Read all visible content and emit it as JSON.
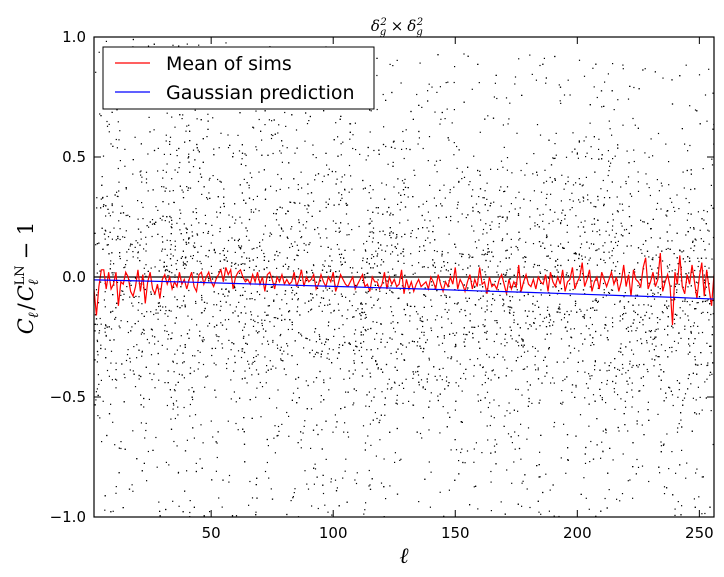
{
  "chart_data": {
    "type": "line",
    "title": "δ_g² × δ_g²",
    "title_parts": {
      "a": "δ",
      "a_sub": "g",
      "a_sup": "2",
      "times": "×",
      "b": "δ",
      "b_sub": "g",
      "b_sup": "2"
    },
    "xlabel": "ℓ",
    "ylabel": "C_ℓ / C_ℓ^LN − 1",
    "ylabel_parts": {
      "c1": "C",
      "c1_sub": "ℓ",
      "slash": "/",
      "c2": "C",
      "c2_sub": "ℓ",
      "c2_sup": "LN",
      "minus_one": "− 1"
    },
    "xlim": [
      2,
      256
    ],
    "ylim": [
      -1.0,
      1.0
    ],
    "xticks": [
      50,
      100,
      150,
      200,
      250
    ],
    "yticks": [
      -1.0,
      -0.5,
      0.0,
      0.5,
      1.0
    ],
    "xtick_labels": [
      "50",
      "100",
      "150",
      "200",
      "250"
    ],
    "ytick_labels": [
      "−1.0",
      "−0.5",
      "0.0",
      "0.5",
      "1.0"
    ],
    "reference_line_y": 0.0,
    "legend_position": "top-left",
    "grid": false,
    "series": [
      {
        "name": "Mean of sims",
        "color": "#ff0000",
        "x_start": 2,
        "x_step": 1,
        "values": [
          -0.05,
          -0.16,
          -0.04,
          0.03,
          0.03,
          -0.05,
          0.02,
          -0.05,
          -0.03,
          0.02,
          -0.12,
          -0.02,
          -0.03,
          0.02,
          0.0,
          -0.06,
          -0.08,
          -0.04,
          0.03,
          -0.06,
          0.01,
          -0.11,
          -0.02,
          0.02,
          -0.05,
          -0.07,
          -0.03,
          -0.09,
          -0.01,
          0.01,
          -0.03,
          0.0,
          -0.05,
          -0.02,
          -0.04,
          0.02,
          -0.03,
          -0.01,
          -0.05,
          -0.01,
          0.02,
          -0.04,
          -0.06,
          0.01,
          0.02,
          -0.03,
          0.0,
          0.02,
          -0.02,
          -0.04,
          -0.01,
          0.01,
          0.03,
          -0.02,
          0.04,
          0.01,
          0.03,
          -0.05,
          0.0,
          0.02,
          0.03,
          0.0,
          -0.02,
          -0.01,
          -0.03,
          0.01,
          -0.02,
          0.02,
          -0.03,
          0.0,
          -0.06,
          0.01,
          0.02,
          -0.01,
          -0.05,
          0.0,
          -0.02,
          0.01,
          -0.03,
          -0.01,
          -0.03,
          -0.02,
          0.02,
          -0.04,
          -0.01,
          0.03,
          -0.04,
          0.0,
          -0.02,
          -0.01,
          0.01,
          -0.05,
          -0.03,
          0.01,
          -0.02,
          -0.04,
          0.0,
          -0.02,
          0.02,
          -0.06,
          -0.03,
          0.01,
          -0.01,
          -0.03,
          -0.04,
          -0.02,
          0.0,
          -0.05,
          -0.03,
          -0.01,
          0.01,
          -0.04,
          -0.03,
          -0.06,
          0.0,
          -0.02,
          -0.02,
          -0.05,
          -0.03,
          0.02,
          -0.05,
          0.0,
          -0.03,
          -0.01,
          -0.04,
          -0.03,
          0.03,
          -0.07,
          -0.01,
          -0.05,
          -0.02,
          -0.06,
          -0.03,
          -0.01,
          -0.04,
          -0.03,
          -0.02,
          -0.05,
          0.0,
          -0.02,
          -0.05,
          0.01,
          -0.03,
          -0.06,
          -0.02,
          -0.04,
          0.0,
          -0.03,
          0.04,
          -0.05,
          -0.01,
          -0.03,
          -0.06,
          -0.02,
          0.01,
          -0.05,
          -0.01,
          -0.04,
          0.04,
          -0.03,
          -0.02,
          -0.07,
          0.0,
          -0.04,
          -0.03,
          -0.05,
          -0.01,
          0.01,
          -0.03,
          -0.07,
          -0.01,
          -0.05,
          -0.02,
          -0.04,
          0.05,
          -0.06,
          -0.02,
          0.01,
          -0.03,
          -0.04,
          -0.01,
          -0.05,
          0.0,
          -0.02,
          -0.03,
          0.01,
          -0.06,
          0.02,
          -0.02,
          -0.04,
          0.0,
          -0.03,
          0.03,
          -0.06,
          -0.02,
          -0.01,
          0.04,
          -0.05,
          -0.02,
          0.0,
          0.06,
          -0.04,
          -0.01,
          0.03,
          -0.06,
          -0.02,
          0.0,
          -0.05,
          0.02,
          -0.01,
          -0.04,
          -0.01,
          0.02,
          -0.03,
          0.0,
          -0.06,
          -0.02,
          0.05,
          -0.04,
          0.01,
          -0.08,
          0.03,
          -0.01,
          -0.02,
          -0.04,
          0.04,
          0.08,
          -0.05,
          -0.02,
          0.02,
          -0.04,
          -0.01,
          0.1,
          -0.06,
          -0.02,
          0.01,
          -0.04,
          -0.2,
          0.02,
          -0.03,
          0.09,
          -0.04,
          -0.07,
          0.01,
          -0.03,
          0.05,
          -0.02,
          -0.09,
          0.0,
          0.06,
          -0.08,
          0.03,
          -0.05,
          -0.12,
          0.01,
          0.05,
          -0.04,
          -0.02,
          0.03,
          -0.1,
          -0.05
        ]
      },
      {
        "name": "Gaussian prediction",
        "color": "#0000ff",
        "x": [
          2,
          20,
          40,
          60,
          80,
          100,
          120,
          140,
          160,
          180,
          200,
          220,
          240,
          256
        ],
        "values": [
          -0.012,
          -0.016,
          -0.021,
          -0.027,
          -0.033,
          -0.039,
          -0.045,
          -0.051,
          -0.058,
          -0.064,
          -0.071,
          -0.078,
          -0.085,
          -0.092
        ]
      }
    ],
    "scatter_background": {
      "name": "individual simulations",
      "color": "#000000",
      "marker": "dot",
      "point_count": 5200,
      "description_spread": "dense cloud of per-simulation values filling the full y range, most concentrated between about -0.4 and 0.4"
    }
  }
}
